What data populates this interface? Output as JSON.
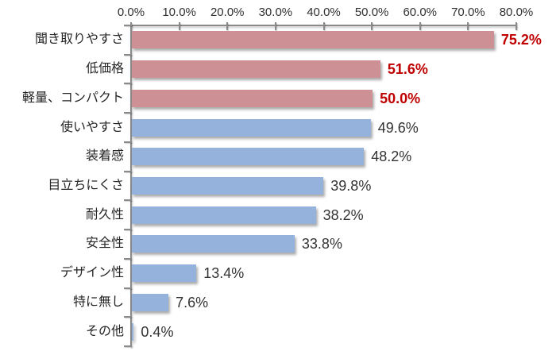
{
  "chart_data": {
    "type": "bar",
    "orientation": "horizontal",
    "title": "",
    "categories": [
      "聞き取りやすさ",
      "低価格",
      "軽量、コンパクト",
      "使いやすさ",
      "装着感",
      "目立ちにくさ",
      "耐久性",
      "安全性",
      "デザイン性",
      "特に無し",
      "その他"
    ],
    "values": [
      75.2,
      51.6,
      50.0,
      49.6,
      48.2,
      39.8,
      38.2,
      33.8,
      13.4,
      7.6,
      0.4
    ],
    "value_labels": [
      "75.2%",
      "51.6%",
      "50.0%",
      "49.6%",
      "48.2%",
      "39.8%",
      "38.2%",
      "33.8%",
      "13.4%",
      "7.6%",
      "0.4%"
    ],
    "highlight_indices": [
      0,
      1,
      2
    ],
    "x_axis": {
      "position": "top",
      "min": 0,
      "max": 80,
      "step": 10,
      "unit": "%",
      "tick_labels": [
        "0.0%",
        "10.0%",
        "20.0%",
        "30.0%",
        "40.0%",
        "50.0%",
        "60.0%",
        "70.0%",
        "80.0%"
      ]
    },
    "grid": "off",
    "legend": "none",
    "colors": {
      "highlight_bar": "#cd9094",
      "default_bar": "#94b2dc",
      "highlight_value_text": "#c00000",
      "value_text": "#333333",
      "category_text": "#262626",
      "axis_line": "#8a8a8a"
    }
  }
}
